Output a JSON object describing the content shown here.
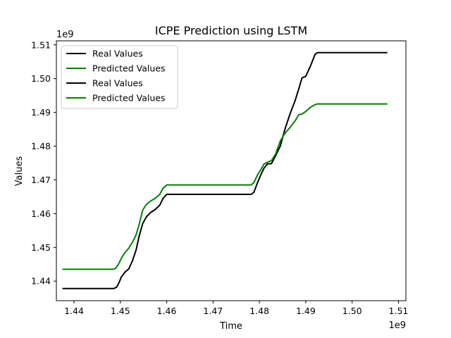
{
  "chart_data": {
    "type": "line",
    "title": "ICPE Prediction using LSTM",
    "xlabel": "Time",
    "ylabel": "Values",
    "x_offset_label": "1e9",
    "y_offset_label": "1e9",
    "xlim": [
      1.4362,
      1.5116
    ],
    "ylim": [
      1.4342,
      1.5112
    ],
    "x_ticks": [
      1.44,
      1.45,
      1.46,
      1.47,
      1.48,
      1.49,
      1.5,
      1.51
    ],
    "x_tick_labels": [
      "1.44",
      "1.45",
      "1.46",
      "1.47",
      "1.48",
      "1.49",
      "1.50",
      "1.51"
    ],
    "y_ticks": [
      1.44,
      1.45,
      1.46,
      1.47,
      1.48,
      1.49,
      1.5,
      1.51
    ],
    "y_tick_labels": [
      "1.44",
      "1.45",
      "1.46",
      "1.47",
      "1.48",
      "1.49",
      "1.50",
      "1.51"
    ],
    "grid": false,
    "legend_position": "top-left",
    "legend": [
      {
        "label": "Real Values",
        "color": "#000000"
      },
      {
        "label": "Predicted Values",
        "color": "#008000"
      },
      {
        "label": "Real Values",
        "color": "#000000"
      },
      {
        "label": "Predicted Values",
        "color": "#008000"
      }
    ],
    "series": [
      {
        "name": "Real Values",
        "color": "#000000",
        "points": [
          [
            1.4375,
            1.4378
          ],
          [
            1.4486,
            1.4378
          ],
          [
            1.4492,
            1.4382
          ],
          [
            1.4497,
            1.4395
          ],
          [
            1.4502,
            1.4412
          ],
          [
            1.451,
            1.4427
          ],
          [
            1.4518,
            1.4436
          ],
          [
            1.4526,
            1.446
          ],
          [
            1.4534,
            1.4492
          ],
          [
            1.454,
            1.453
          ],
          [
            1.4548,
            1.457
          ],
          [
            1.4556,
            1.459
          ],
          [
            1.4565,
            1.4603
          ],
          [
            1.4575,
            1.4612
          ],
          [
            1.4585,
            1.4625
          ],
          [
            1.4592,
            1.4645
          ],
          [
            1.46,
            1.4657
          ],
          [
            1.4782,
            1.4657
          ],
          [
            1.4788,
            1.4663
          ],
          [
            1.4796,
            1.4692
          ],
          [
            1.4803,
            1.4715
          ],
          [
            1.481,
            1.4735
          ],
          [
            1.4817,
            1.4747
          ],
          [
            1.4826,
            1.4748
          ],
          [
            1.4835,
            1.4772
          ],
          [
            1.4845,
            1.48
          ],
          [
            1.4855,
            1.485
          ],
          [
            1.4866,
            1.4895
          ],
          [
            1.4877,
            1.4935
          ],
          [
            1.4885,
            1.497
          ],
          [
            1.4892,
            1.5002
          ],
          [
            1.49,
            1.5007
          ],
          [
            1.491,
            1.5037
          ],
          [
            1.492,
            1.5072
          ],
          [
            1.4925,
            1.5077
          ],
          [
            1.5076,
            1.5077
          ]
        ]
      },
      {
        "name": "Predicted Values",
        "color": "#008000",
        "points": [
          [
            1.4375,
            1.4435
          ],
          [
            1.4484,
            1.4435
          ],
          [
            1.449,
            1.4438
          ],
          [
            1.4496,
            1.445
          ],
          [
            1.4503,
            1.447
          ],
          [
            1.451,
            1.4485
          ],
          [
            1.4518,
            1.4497
          ],
          [
            1.4526,
            1.4515
          ],
          [
            1.4534,
            1.4537
          ],
          [
            1.454,
            1.4565
          ],
          [
            1.4548,
            1.461
          ],
          [
            1.4556,
            1.4627
          ],
          [
            1.4565,
            1.4637
          ],
          [
            1.4575,
            1.4645
          ],
          [
            1.4585,
            1.4657
          ],
          [
            1.4592,
            1.4675
          ],
          [
            1.46,
            1.4685
          ],
          [
            1.4782,
            1.4685
          ],
          [
            1.4788,
            1.4692
          ],
          [
            1.4796,
            1.4715
          ],
          [
            1.4803,
            1.473
          ],
          [
            1.481,
            1.4747
          ],
          [
            1.4817,
            1.4752
          ],
          [
            1.4826,
            1.4757
          ],
          [
            1.4835,
            1.4777
          ],
          [
            1.4845,
            1.4815
          ],
          [
            1.4855,
            1.4838
          ],
          [
            1.4866,
            1.4855
          ],
          [
            1.4877,
            1.4875
          ],
          [
            1.4885,
            1.4893
          ],
          [
            1.4892,
            1.4895
          ],
          [
            1.49,
            1.4903
          ],
          [
            1.491,
            1.4915
          ],
          [
            1.492,
            1.4923
          ],
          [
            1.4925,
            1.4925
          ],
          [
            1.5076,
            1.4925
          ]
        ]
      }
    ]
  }
}
